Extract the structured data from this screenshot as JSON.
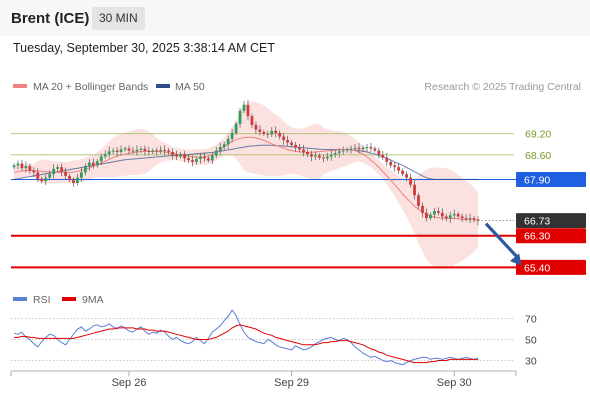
{
  "header": {
    "title": "Brent (ICE)",
    "interval": "30 MIN"
  },
  "timestamp": "Tuesday, September 30, 2025 3:38:14 AM CET",
  "legend": {
    "ma20": {
      "label": "MA 20 + Bollinger Bands",
      "color": "#f08080"
    },
    "ma50": {
      "label": "MA 50",
      "color": "#2c4f8c"
    }
  },
  "credit": "Research © 2025 Trading Central",
  "rsi_legend": {
    "rsi": {
      "label": "RSI",
      "color": "#5b7fd6"
    },
    "ma9": {
      "label": "9MA",
      "color": "#e00000"
    }
  },
  "chart_data": [
    {
      "type": "candlestick",
      "ylim": [
        64.9,
        70.3
      ],
      "x_ticks": [
        {
          "label": "Sep 26",
          "index": 29
        },
        {
          "label": "Sep 29",
          "index": 70
        },
        {
          "label": "Sep 30",
          "index": 111
        }
      ],
      "levels": [
        {
          "value": 69.2,
          "label": "69.20",
          "kind": "resistance",
          "color": "#a8c070"
        },
        {
          "value": 68.6,
          "label": "68.60",
          "kind": "resistance",
          "color": "#a8c070"
        },
        {
          "value": 67.9,
          "label": "67.90",
          "kind": "pivot",
          "color": "#1f5fe0"
        },
        {
          "value": 66.73,
          "label": "66.73",
          "kind": "last",
          "color": "#333333"
        },
        {
          "value": 66.3,
          "label": "66.30",
          "kind": "support",
          "color": "#e00000"
        },
        {
          "value": 65.4,
          "label": "65.40",
          "kind": "support",
          "color": "#e00000"
        }
      ],
      "arrow": {
        "from": [
          118,
          66.73
        ],
        "to": [
          128,
          65.45
        ],
        "color": "#2c5aa0"
      },
      "close": [
        68.3,
        68.35,
        68.22,
        68.28,
        68.15,
        68.1,
        67.92,
        67.85,
        67.95,
        68.05,
        68.2,
        68.25,
        68.12,
        68.0,
        67.88,
        67.8,
        67.95,
        68.1,
        68.28,
        68.38,
        68.3,
        68.42,
        68.55,
        68.62,
        68.7,
        68.72,
        68.68,
        68.75,
        68.78,
        68.72,
        68.7,
        68.74,
        68.77,
        68.71,
        68.68,
        68.72,
        68.7,
        68.74,
        68.72,
        68.68,
        68.6,
        68.55,
        68.62,
        68.5,
        68.45,
        68.4,
        68.48,
        68.55,
        68.5,
        68.44,
        68.58,
        68.72,
        68.82,
        68.9,
        69.05,
        69.22,
        69.48,
        69.85,
        70.02,
        69.7,
        69.45,
        69.32,
        69.25,
        69.2,
        69.18,
        69.28,
        69.22,
        69.12,
        69.02,
        68.95,
        68.88,
        68.8,
        68.75,
        68.68,
        68.62,
        68.55,
        68.58,
        68.52,
        68.5,
        68.55,
        68.6,
        68.65,
        68.7,
        68.72,
        68.75,
        68.78,
        68.8,
        68.76,
        68.8,
        68.82,
        68.78,
        68.72,
        68.6,
        68.52,
        68.4,
        68.3,
        68.25,
        68.15,
        68.05,
        67.95,
        67.75,
        67.45,
        67.15,
        66.95,
        66.8,
        66.9,
        67.0,
        66.95,
        66.85,
        66.8,
        66.88,
        66.92,
        66.85,
        66.8,
        66.78,
        66.8,
        66.76,
        66.73
      ],
      "ma20": [
        68.1,
        68.12,
        68.14,
        68.15,
        68.16,
        68.15,
        68.14,
        68.13,
        68.12,
        68.11,
        68.1,
        68.1,
        68.1,
        68.1,
        68.1,
        68.11,
        68.13,
        68.15,
        68.19,
        68.23,
        68.27,
        68.32,
        68.37,
        68.42,
        68.47,
        68.52,
        68.56,
        68.59,
        68.62,
        68.64,
        68.66,
        68.68,
        68.69,
        68.7,
        68.7,
        68.7,
        68.7,
        68.69,
        68.68,
        68.66,
        68.64,
        68.62,
        68.6,
        68.58,
        68.56,
        68.54,
        68.53,
        68.53,
        68.54,
        68.56,
        68.6,
        68.66,
        68.74,
        68.83,
        68.91,
        68.98,
        69.03,
        69.07,
        69.09,
        69.1,
        69.1,
        69.08,
        69.05,
        69.01,
        68.96,
        68.91,
        68.87,
        68.83,
        68.79,
        68.75,
        68.72,
        68.7,
        68.68,
        68.67,
        68.67,
        68.67,
        68.68,
        68.69,
        68.7,
        68.71,
        68.72,
        68.73,
        68.74,
        68.75,
        68.75,
        68.74,
        68.72,
        68.68,
        68.62,
        68.54,
        68.45,
        68.35,
        68.24,
        68.12,
        68.0,
        67.88,
        67.75,
        67.62,
        67.49,
        67.37,
        67.25,
        67.14,
        67.05,
        66.97,
        66.91,
        66.86,
        66.83,
        66.81,
        66.8,
        66.79,
        66.79,
        66.79,
        66.78,
        66.77,
        66.76,
        66.76,
        66.75,
        66.75
      ],
      "ma50": [
        67.9,
        67.92,
        67.94,
        67.96,
        67.98,
        68.0,
        68.02,
        68.04,
        68.06,
        68.08,
        68.1,
        68.12,
        68.14,
        68.16,
        68.18,
        68.2,
        68.22,
        68.24,
        68.26,
        68.28,
        68.3,
        68.32,
        68.34,
        68.36,
        68.38,
        68.4,
        68.42,
        68.44,
        68.46,
        68.47,
        68.48,
        68.49,
        68.5,
        68.51,
        68.52,
        68.53,
        68.54,
        68.55,
        68.56,
        68.57,
        68.58,
        68.59,
        68.6,
        68.6,
        68.61,
        68.62,
        68.63,
        68.64,
        68.65,
        68.66,
        68.67,
        68.68,
        68.7,
        68.72,
        68.74,
        68.76,
        68.78,
        68.8,
        68.82,
        68.84,
        68.85,
        68.86,
        68.87,
        68.87,
        68.87,
        68.87,
        68.86,
        68.86,
        68.85,
        68.84,
        68.83,
        68.82,
        68.81,
        68.8,
        68.79,
        68.78,
        68.77,
        68.76,
        68.75,
        68.75,
        68.75,
        68.75,
        68.75,
        68.75,
        68.75,
        68.74,
        68.73,
        68.72,
        68.7,
        68.68,
        68.65,
        68.62,
        68.58,
        68.54,
        68.5,
        68.45,
        68.4,
        68.35,
        68.3,
        68.24,
        68.18,
        68.12,
        68.06,
        68.0,
        67.95,
        67.92,
        67.9,
        67.9,
        67.9,
        67.9,
        67.9,
        67.9,
        67.9,
        67.9,
        67.9,
        67.9,
        67.9,
        67.9
      ]
    },
    {
      "type": "line",
      "ylim": [
        20,
        80
      ],
      "y_ticks": [
        70,
        50,
        30
      ],
      "series": [
        {
          "name": "RSI",
          "values": [
            56,
            55,
            57,
            52,
            50,
            46,
            43,
            48,
            52,
            55,
            54,
            50,
            47,
            45,
            50,
            55,
            60,
            62,
            58,
            60,
            63,
            64,
            62,
            63,
            65,
            62,
            60,
            63,
            61,
            58,
            57,
            60,
            62,
            58,
            55,
            57,
            56,
            59,
            57,
            53,
            50,
            52,
            49,
            47,
            46,
            48,
            52,
            49,
            46,
            51,
            57,
            60,
            63,
            68,
            72,
            78,
            73,
            64,
            57,
            52,
            50,
            48,
            47,
            46,
            50,
            48,
            45,
            43,
            42,
            41,
            40,
            44,
            42,
            40,
            41,
            43,
            46,
            48,
            50,
            51,
            52,
            50,
            49,
            51,
            50,
            47,
            43,
            40,
            37,
            35,
            33,
            34,
            32,
            30,
            29,
            30,
            28,
            27,
            26,
            28,
            30,
            31,
            32,
            33,
            33,
            31,
            32,
            32,
            31,
            32,
            33,
            32,
            31,
            32,
            33,
            32,
            31,
            32
          ]
        },
        {
          "name": "9MA",
          "values": [
            52,
            52,
            53,
            53,
            52,
            52,
            51,
            51,
            51,
            51,
            51,
            51,
            51,
            51,
            51,
            51,
            52,
            53,
            54,
            55,
            56,
            57,
            58,
            59,
            60,
            60,
            61,
            61,
            61,
            61,
            61,
            60,
            60,
            60,
            59,
            59,
            58,
            58,
            58,
            57,
            56,
            55,
            54,
            53,
            52,
            51,
            50,
            50,
            50,
            50,
            51,
            52,
            54,
            56,
            58,
            61,
            63,
            64,
            63,
            62,
            61,
            60,
            58,
            56,
            55,
            54,
            52,
            51,
            50,
            49,
            48,
            47,
            46,
            45,
            45,
            45,
            45,
            46,
            47,
            47,
            48,
            48,
            49,
            49,
            49,
            48,
            47,
            46,
            45,
            43,
            41,
            40,
            38,
            37,
            35,
            34,
            33,
            32,
            31,
            30,
            29,
            28,
            28,
            28,
            28,
            29,
            29,
            30,
            30,
            30,
            31,
            31,
            31,
            31,
            31,
            31,
            31,
            31
          ]
        }
      ]
    }
  ]
}
